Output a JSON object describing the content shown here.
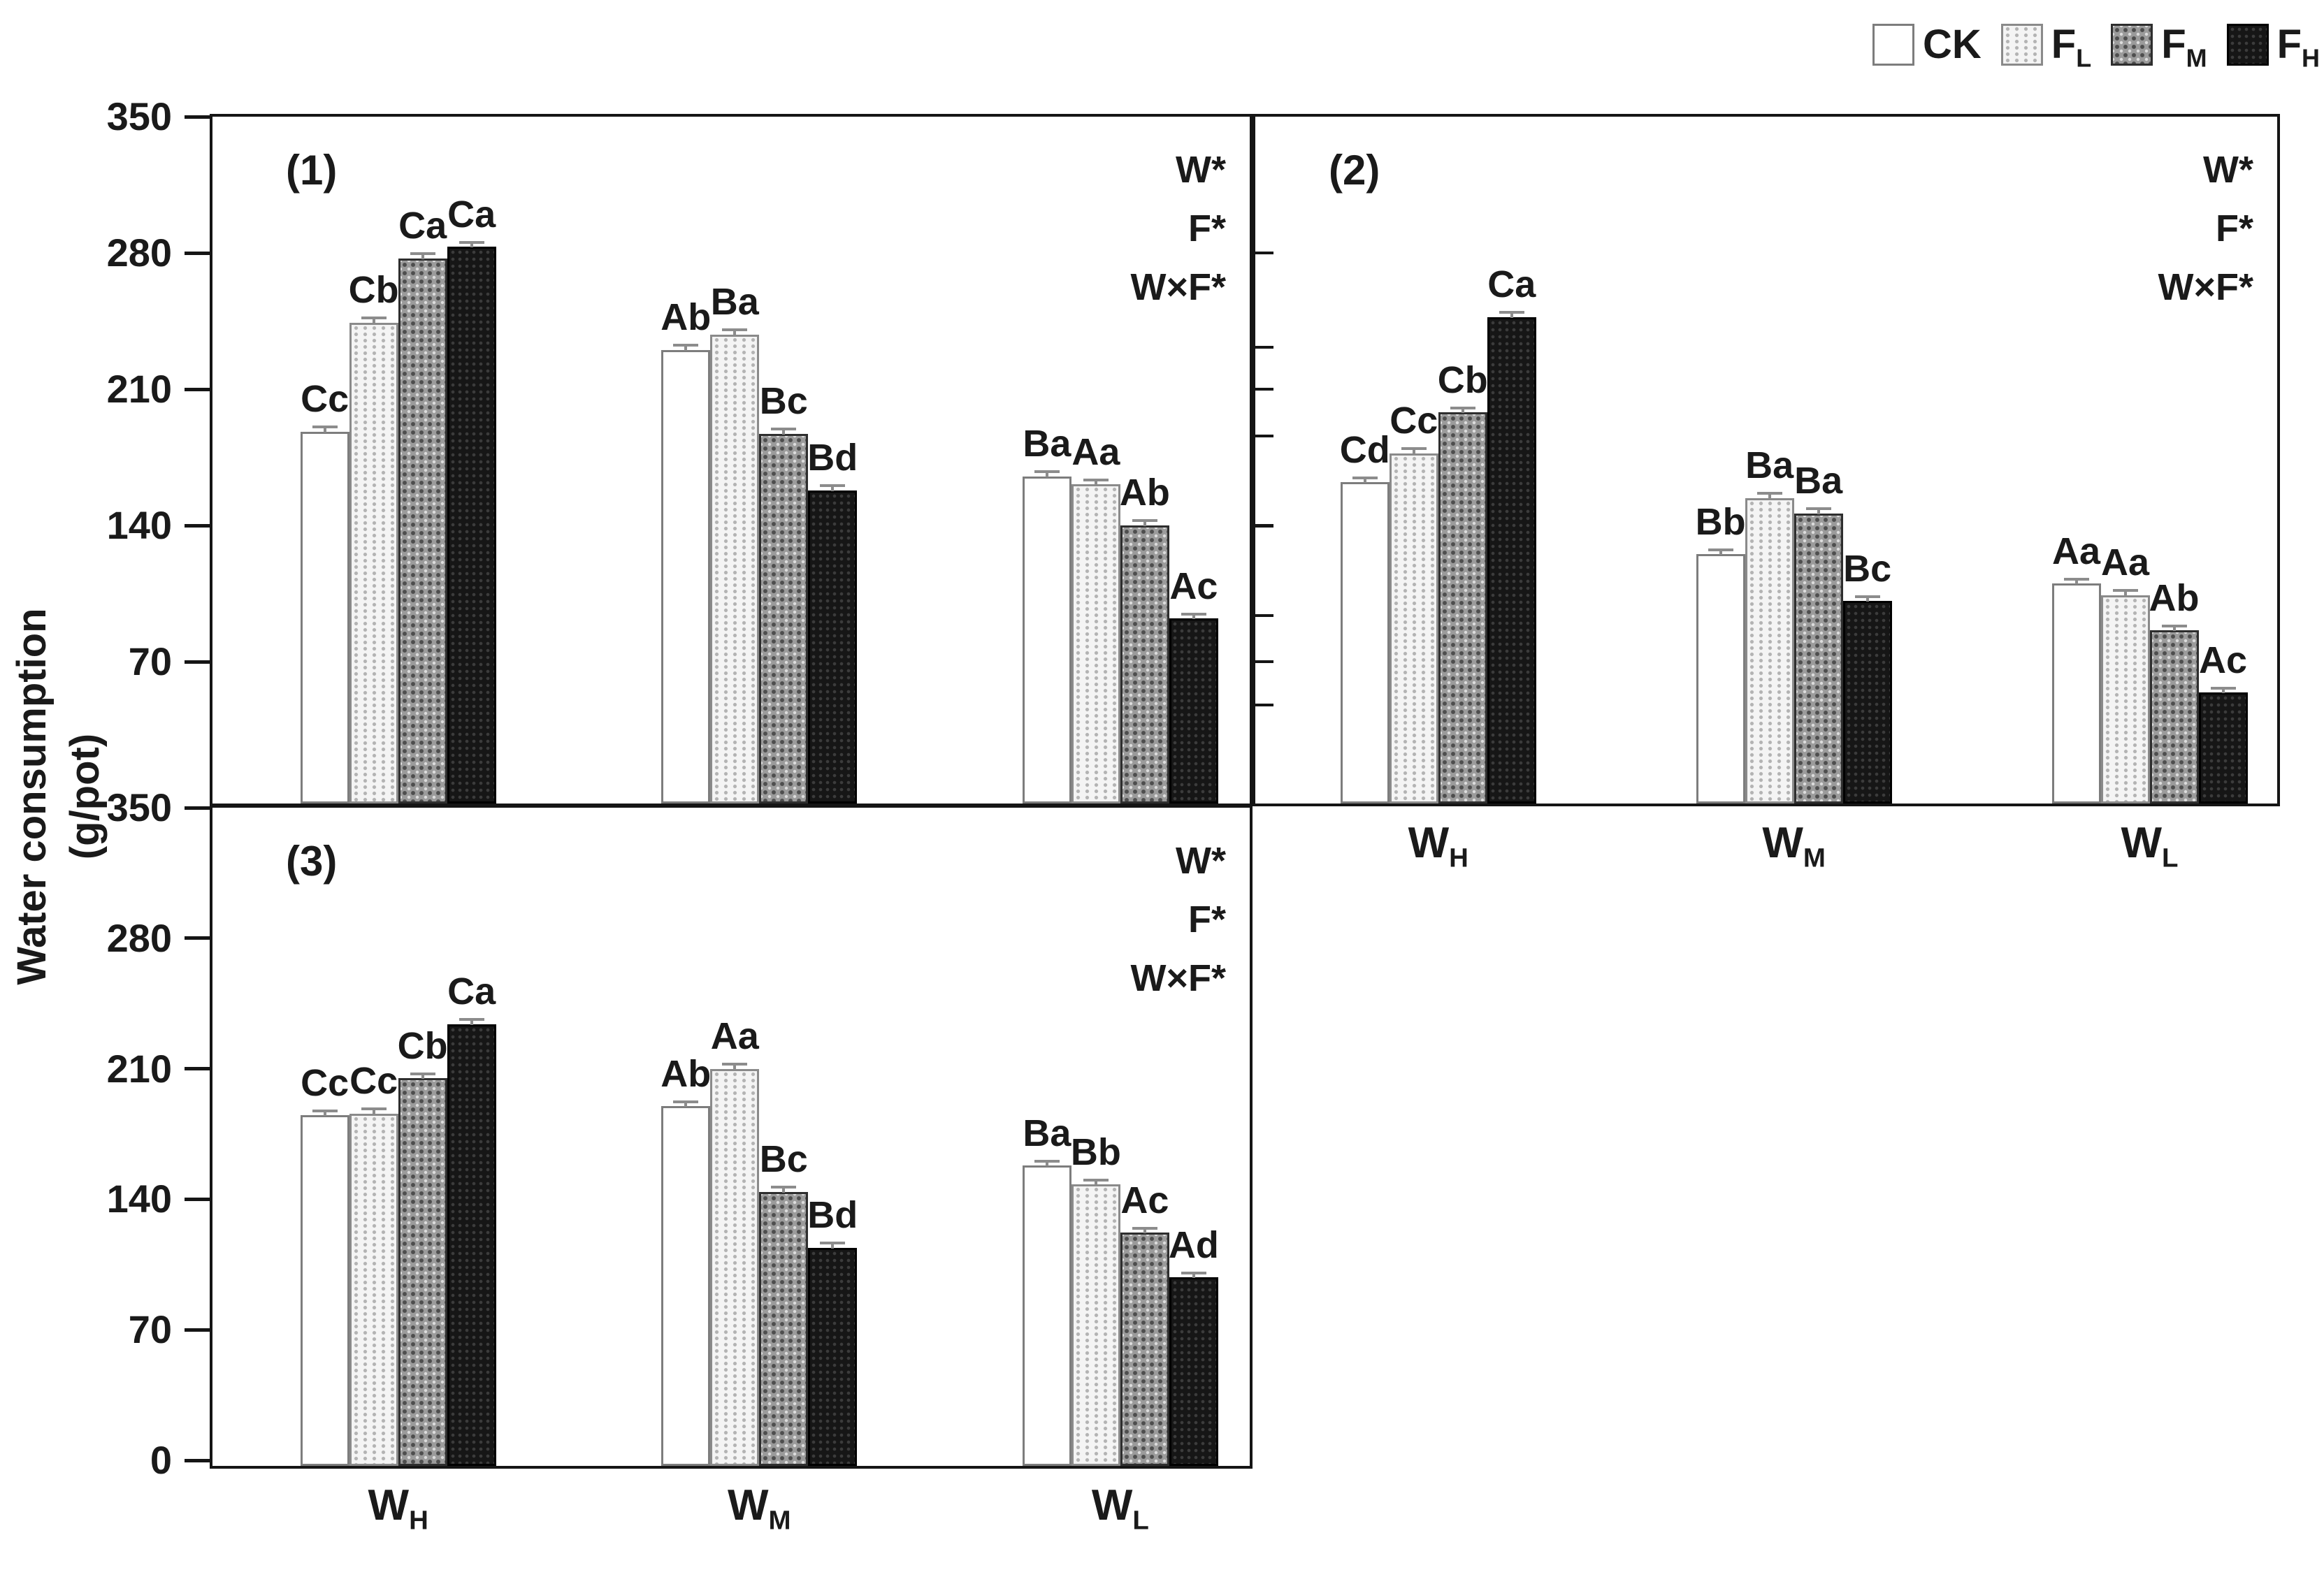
{
  "figure": {
    "y_axis_title_line1": "Water consumption",
    "y_axis_title_line2": "(g/pot)",
    "background": "#ffffff"
  },
  "legend": {
    "position": "top-right",
    "items": [
      {
        "key": "CK",
        "label": "CK",
        "sub": ""
      },
      {
        "key": "FL",
        "label": "F",
        "sub": "L"
      },
      {
        "key": "FM",
        "label": "F",
        "sub": "M"
      },
      {
        "key": "FH",
        "label": "F",
        "sub": "H"
      }
    ]
  },
  "colors": {
    "axis": "#151515",
    "ck_fill": "#ffffff",
    "ck_border": "#7d7d7d",
    "fl_fill": "#f4f4f4",
    "fl_dot": "#b3b3b3",
    "fl_border": "#8a8a8a",
    "fm_fill": "#9b9b9b",
    "fm_dot": "#4e4e4e",
    "fm_border": "#2e2e2e",
    "fh_fill": "#161616",
    "fh_dot": "#3c3c3c",
    "fh_border": "#000000",
    "error_bar": "#8c8c8c"
  },
  "chart_data": [
    {
      "type": "bar",
      "panel_label": "(1)",
      "position": "top-left",
      "title": "",
      "xlabel": "",
      "ylabel": "Water consumption (g/pot)",
      "ylim": [
        0,
        350
      ],
      "yticks": [
        350,
        280,
        210,
        140,
        70
      ],
      "ytick_labels_shown": true,
      "x_labels_shown": false,
      "grid": false,
      "annotations": [
        "W*",
        "F*",
        "W×F*"
      ],
      "categories": [
        "WH",
        "WM",
        "WL"
      ],
      "category_labels": [
        {
          "main": "W",
          "sub": "H"
        },
        {
          "main": "W",
          "sub": "M"
        },
        {
          "main": "W",
          "sub": "L"
        }
      ],
      "series": [
        {
          "key": "CK",
          "name": "CK",
          "values": [
            191,
            233,
            168
          ],
          "letters": [
            "Cc",
            "Ab",
            "Ba"
          ],
          "errors": [
            2,
            2,
            2
          ]
        },
        {
          "key": "FL",
          "name": "FL",
          "values": [
            247,
            241,
            164
          ],
          "letters": [
            "Cb",
            "Ba",
            "Aa"
          ],
          "errors": [
            2,
            2,
            2
          ]
        },
        {
          "key": "FM",
          "name": "FM",
          "values": [
            280,
            190,
            143
          ],
          "letters": [
            "Ca",
            "Bc",
            "Ab"
          ],
          "errors": [
            2,
            2,
            2
          ]
        },
        {
          "key": "FH",
          "name": "FH",
          "values": [
            286,
            161,
            95
          ],
          "letters": [
            "Ca",
            "Bd",
            "Ac"
          ],
          "errors": [
            2,
            2,
            2
          ]
        }
      ]
    },
    {
      "type": "bar",
      "panel_label": "(2)",
      "position": "top-right",
      "title": "",
      "xlabel": "",
      "ylabel": "Water consumption (g/pot)",
      "ylim": [
        0,
        350
      ],
      "yticks": [
        280,
        210,
        140,
        70
      ],
      "ytick_labels_shown": false,
      "x_labels_shown": true,
      "grid": false,
      "annotations": [
        "W*",
        "F*",
        "W×F*"
      ],
      "categories": [
        "WH",
        "WM",
        "WL"
      ],
      "category_labels": [
        {
          "main": "W",
          "sub": "H"
        },
        {
          "main": "W",
          "sub": "M"
        },
        {
          "main": "W",
          "sub": "L"
        }
      ],
      "series": [
        {
          "key": "CK",
          "name": "CK",
          "values": [
            165,
            128,
            113
          ],
          "letters": [
            "Cd",
            "Bb",
            "Aa"
          ],
          "errors": [
            2,
            2,
            2
          ]
        },
        {
          "key": "FL",
          "name": "FL",
          "values": [
            180,
            157,
            107
          ],
          "letters": [
            "Cc",
            "Ba",
            "Aa"
          ],
          "errors": [
            2,
            2,
            2
          ]
        },
        {
          "key": "FM",
          "name": "FM",
          "values": [
            201,
            149,
            89
          ],
          "letters": [
            "Cb",
            "Ba",
            "Ab"
          ],
          "errors": [
            2,
            2,
            2
          ]
        },
        {
          "key": "FH",
          "name": "FH",
          "values": [
            250,
            104,
            57
          ],
          "letters": [
            "Ca",
            "Bc",
            "Ac"
          ],
          "errors": [
            2,
            2,
            2
          ]
        }
      ]
    },
    {
      "type": "bar",
      "panel_label": "(3)",
      "position": "bottom-left",
      "title": "",
      "xlabel": "",
      "ylabel": "Water consumption (g/pot)",
      "ylim": [
        0,
        350
      ],
      "yticks": [
        350,
        280,
        210,
        140,
        70,
        0
      ],
      "ytick_labels_shown": true,
      "x_labels_shown": true,
      "grid": false,
      "annotations": [
        "W*",
        "F*",
        "W×F*"
      ],
      "categories": [
        "WH",
        "WM",
        "WL"
      ],
      "category_labels": [
        {
          "main": "W",
          "sub": "H"
        },
        {
          "main": "W",
          "sub": "M"
        },
        {
          "main": "W",
          "sub": "L"
        }
      ],
      "series": [
        {
          "key": "CK",
          "name": "CK",
          "values": [
            188,
            193,
            161
          ],
          "letters": [
            "Cc",
            "Ab",
            "Ba"
          ],
          "errors": [
            2,
            2,
            2
          ]
        },
        {
          "key": "FL",
          "name": "FL",
          "values": [
            189,
            213,
            151
          ],
          "letters": [
            "Cc",
            "Aa",
            "Bb"
          ],
          "errors": [
            2,
            2,
            2
          ]
        },
        {
          "key": "FM",
          "name": "FM",
          "values": [
            208,
            147,
            125
          ],
          "letters": [
            "Cb",
            "Bc",
            "Ac"
          ],
          "errors": [
            2,
            2,
            2
          ]
        },
        {
          "key": "FH",
          "name": "FH",
          "values": [
            237,
            117,
            101
          ],
          "letters": [
            "Ca",
            "Bd",
            "Ad"
          ],
          "errors": [
            2,
            2,
            2
          ]
        }
      ]
    }
  ]
}
